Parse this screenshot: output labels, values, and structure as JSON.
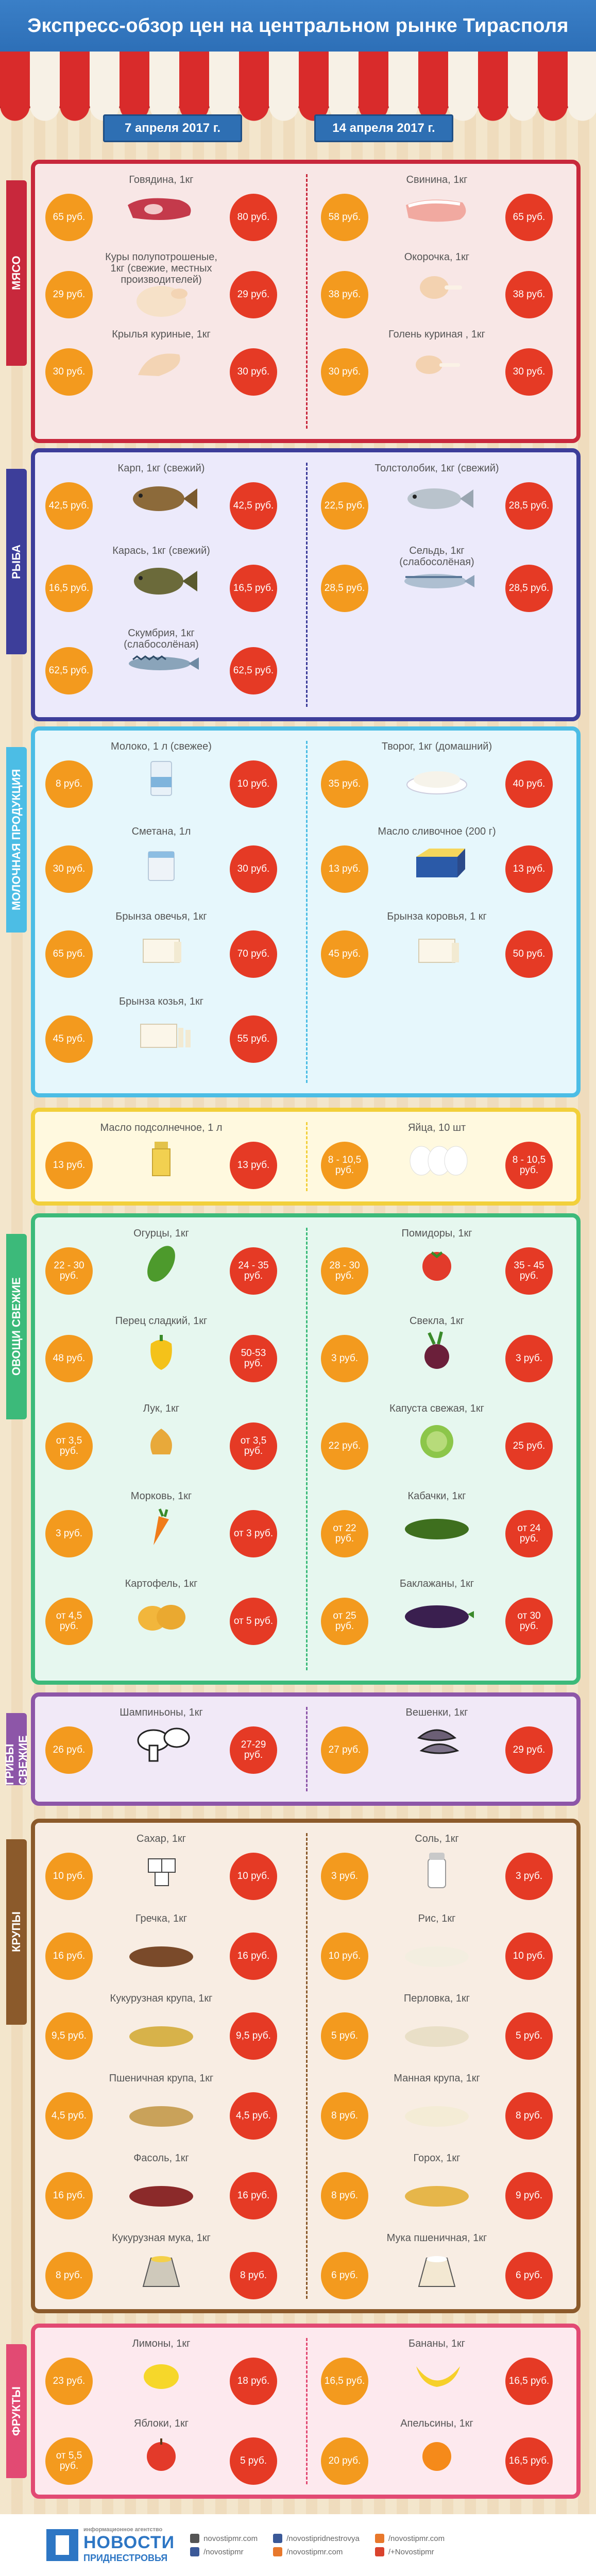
{
  "title": "Экспресс-обзор цен на центральном рынке Тирасполя",
  "dates": {
    "left": "7 апреля  2017 г.",
    "right": "14 апреля 2017 г."
  },
  "colors": {
    "meat": "#c8283c",
    "fish": "#3d3e9a",
    "dairy": "#4cbde5",
    "oil": "#f2d03b",
    "veg": "#3cba7a",
    "mushroom": "#8d56a8",
    "grain": "#8b5a2b",
    "fruit": "#e24a73",
    "old_price": "#f39a1e",
    "new_price": "#e53a25"
  },
  "sections": [
    {
      "key": "meat",
      "label": "МЯСО",
      "items": [
        {
          "name": "Говядина, 1кг",
          "old": "65 руб.",
          "new": "80 руб.",
          "icon": "beef-icon",
          "side": "left"
        },
        {
          "name": "Свинина, 1кг",
          "old": "58 руб.",
          "new": "65 руб.",
          "icon": "pork-icon",
          "side": "right"
        },
        {
          "name": "Куры полупотрошеные, 1кг (свежие, местных производителей)",
          "old": "29 руб.",
          "new": "29 руб.",
          "icon": "chicken-icon",
          "side": "left"
        },
        {
          "name": "Окорочка, 1кг",
          "old": "38 руб.",
          "new": "38 руб.",
          "icon": "leg-quarter-icon",
          "side": "right"
        },
        {
          "name": "Крылья куриные, 1кг",
          "old": "30 руб.",
          "new": "30 руб.",
          "icon": "chicken-wing-icon",
          "side": "left"
        },
        {
          "name": "Голень куриная , 1кг",
          "old": "30 руб.",
          "new": "30 руб.",
          "icon": "drumstick-icon",
          "side": "right"
        }
      ]
    },
    {
      "key": "fish",
      "label": "РЫБА",
      "items": [
        {
          "name": "Карп, 1кг (свежий)",
          "old": "42,5 руб.",
          "new": "42,5 руб.",
          "icon": "carp-icon",
          "side": "left"
        },
        {
          "name": "Толстолобик, 1кг (свежий)",
          "old": "22,5 руб.",
          "new": "28,5 руб.",
          "icon": "silver-carp-icon",
          "side": "right"
        },
        {
          "name": "Карась, 1кг (свежий)",
          "old": "16,5 руб.",
          "new": "16,5 руб.",
          "icon": "crucian-icon",
          "side": "left"
        },
        {
          "name": "Сельдь, 1кг (слабосолёная)",
          "old": "28,5 руб.",
          "new": "28,5 руб.",
          "icon": "herring-icon",
          "side": "right"
        },
        {
          "name": "Скумбрия, 1кг (слабосолёная)",
          "old": "62,5 руб.",
          "new": "62,5 руб.",
          "icon": "mackerel-icon",
          "side": "left"
        }
      ]
    },
    {
      "key": "dairy",
      "label": "МОЛОЧНАЯ ПРОДУКЦИЯ",
      "items": [
        {
          "name": "Молоко, 1 л (свежее)",
          "old": "8 руб.",
          "new": "10 руб.",
          "icon": "milk-icon",
          "side": "left"
        },
        {
          "name": "Творог, 1кг (домашний)",
          "old": "35 руб.",
          "new": "40 руб.",
          "icon": "cottage-cheese-icon",
          "side": "right"
        },
        {
          "name": "Сметана, 1л",
          "old": "30 руб.",
          "new": "30 руб.",
          "icon": "sour-cream-icon",
          "side": "left"
        },
        {
          "name": "Масло сливочное (200 г)",
          "old": "13 руб.",
          "new": "13 руб.",
          "icon": "butter-icon",
          "side": "right"
        },
        {
          "name": "Брынза овечья, 1кг",
          "old": "65 руб.",
          "new": "70 руб.",
          "icon": "sheep-cheese-icon",
          "side": "left"
        },
        {
          "name": "Брынза коровья, 1 кг",
          "old": "45 руб.",
          "new": "50 руб.",
          "icon": "cow-cheese-icon",
          "side": "right"
        },
        {
          "name": "Брынза козья, 1кг",
          "old": "45 руб.",
          "new": "55 руб.",
          "icon": "goat-cheese-icon",
          "side": "left"
        }
      ]
    },
    {
      "key": "oil",
      "label": "",
      "items": [
        {
          "name": "Масло подсолнечное, 1 л",
          "old": "13 руб.",
          "new": "13 руб.",
          "icon": "oil-bottle-icon",
          "side": "left"
        },
        {
          "name": "Яйца, 10 шт",
          "old": "8 - 10,5 руб.",
          "new": "8 - 10,5 руб.",
          "icon": "eggs-icon",
          "side": "right"
        }
      ]
    },
    {
      "key": "veg",
      "label": "ОВОЩИ СВЕЖИЕ",
      "items": [
        {
          "name": "Огурцы, 1кг",
          "old": "22 - 30 руб.",
          "new": "24 - 35 руб.",
          "icon": "cucumber-icon",
          "side": "left"
        },
        {
          "name": "Помидоры, 1кг",
          "old": "28 - 30 руб.",
          "new": "35 - 45 руб.",
          "icon": "tomato-icon",
          "side": "right"
        },
        {
          "name": "Перец сладкий, 1кг",
          "old": "48 руб.",
          "new": "50-53 руб.",
          "icon": "pepper-icon",
          "side": "left"
        },
        {
          "name": "Свекла, 1кг",
          "old": "3 руб.",
          "new": "3 руб.",
          "icon": "beet-icon",
          "side": "right"
        },
        {
          "name": "Лук, 1кг",
          "old": "от 3,5 руб.",
          "new": "от 3,5 руб.",
          "icon": "onion-icon",
          "side": "left"
        },
        {
          "name": "Капуста свежая, 1кг",
          "old": "22 руб.",
          "new": "25 руб.",
          "icon": "cabbage-icon",
          "side": "right"
        },
        {
          "name": "Морковь, 1кг",
          "old": "3 руб.",
          "new": "от 3 руб.",
          "icon": "carrot-icon",
          "side": "left"
        },
        {
          "name": "Кабачки, 1кг",
          "old": "от 22 руб.",
          "new": "от 24 руб.",
          "icon": "zucchini-icon",
          "side": "right"
        },
        {
          "name": "Картофель, 1кг",
          "old": "от 4,5 руб.",
          "new": "от 5 руб.",
          "icon": "potato-icon",
          "side": "left"
        },
        {
          "name": "Баклажаны, 1кг",
          "old": "от 25 руб.",
          "new": "от 30 руб.",
          "icon": "eggplant-icon",
          "side": "right"
        }
      ]
    },
    {
      "key": "mushroom",
      "label": "ГРИБЫ СВЕЖИЕ",
      "items": [
        {
          "name": "Шампиньоны, 1кг",
          "old": "26 руб.",
          "new": "27-29 руб.",
          "icon": "champignon-icon",
          "side": "left"
        },
        {
          "name": "Вешенки, 1кг",
          "old": "27 руб.",
          "new": "29 руб.",
          "icon": "oyster-mushroom-icon",
          "side": "right"
        }
      ]
    },
    {
      "key": "grain",
      "label": "КРУПЫ",
      "items": [
        {
          "name": "Сахар, 1кг",
          "old": "10 руб.",
          "new": "10 руб.",
          "icon": "sugar-icon",
          "side": "left"
        },
        {
          "name": "Соль, 1кг",
          "old": "3 руб.",
          "new": "3 руб.",
          "icon": "salt-icon",
          "side": "right"
        },
        {
          "name": "Гречка, 1кг",
          "old": "16 руб.",
          "new": "16 руб.",
          "icon": "buckwheat-icon",
          "side": "left"
        },
        {
          "name": "Рис, 1кг",
          "old": "10 руб.",
          "new": "10 руб.",
          "icon": "rice-icon",
          "side": "right"
        },
        {
          "name": "Кукурузная крупа, 1кг",
          "old": "9,5 руб.",
          "new": "9,5 руб.",
          "icon": "corn-grits-icon",
          "side": "left"
        },
        {
          "name": "Перловка, 1кг",
          "old": "5 руб.",
          "new": "5 руб.",
          "icon": "barley-icon",
          "side": "right"
        },
        {
          "name": "Пшеничная крупа, 1кг",
          "old": "4,5 руб.",
          "new": "4,5 руб.",
          "icon": "wheat-grits-icon",
          "side": "left"
        },
        {
          "name": "Манная крупа, 1кг",
          "old": "8 руб.",
          "new": "8 руб.",
          "icon": "semolina-icon",
          "side": "right"
        },
        {
          "name": "Фасоль, 1кг",
          "old": "16 руб.",
          "new": "16 руб.",
          "icon": "beans-icon",
          "side": "left"
        },
        {
          "name": "Горох, 1кг",
          "old": "8 руб.",
          "new": "9 руб.",
          "icon": "peas-icon",
          "side": "right"
        },
        {
          "name": "Кукурузная мука, 1кг",
          "old": "8 руб.",
          "new": "8 руб.",
          "icon": "corn-flour-icon",
          "side": "left"
        },
        {
          "name": "Мука пшеничная, 1кг",
          "old": "6 руб.",
          "new": "6 руб.",
          "icon": "wheat-flour-icon",
          "side": "right"
        }
      ]
    },
    {
      "key": "fruit",
      "label": "ФРУКТЫ",
      "items": [
        {
          "name": "Лимоны, 1кг",
          "old": "23 руб.",
          "new": "18 руб.",
          "icon": "lemon-icon",
          "side": "left"
        },
        {
          "name": "Бананы, 1кг",
          "old": "16,5 руб.",
          "new": "16,5 руб.",
          "icon": "banana-icon",
          "side": "right"
        },
        {
          "name": "Яблоки, 1кг",
          "old": "от 5,5 руб.",
          "new": "5 руб.",
          "icon": "apple-icon",
          "side": "left"
        },
        {
          "name": "Апельсины, 1кг",
          "old": "20 руб.",
          "new": "16,5 руб.",
          "icon": "orange-icon",
          "side": "right"
        }
      ]
    }
  ],
  "footer": {
    "logo_top": "информационное агентство",
    "logo_main": "НОВОСТИ",
    "logo_sub": "ПРИДНЕСТРОВЬЯ",
    "links": [
      {
        "icon": "web-icon",
        "text": "novostipmr.com",
        "color": "#555555"
      },
      {
        "icon": "facebook-icon",
        "text": "/novostipmr",
        "color": "#3b5998"
      },
      {
        "icon": "facebook-icon",
        "text": "/novostipridnestrovya",
        "color": "#3b5998"
      },
      {
        "icon": "twitter-icon",
        "text": "/novostipmr.com",
        "color": "#e8782c"
      },
      {
        "icon": "vk-icon",
        "text": "/novostipmr.com",
        "color": "#e8782c"
      },
      {
        "icon": "ok-icon",
        "text": "/+Novostipmr",
        "color": "#d9432e"
      }
    ]
  }
}
